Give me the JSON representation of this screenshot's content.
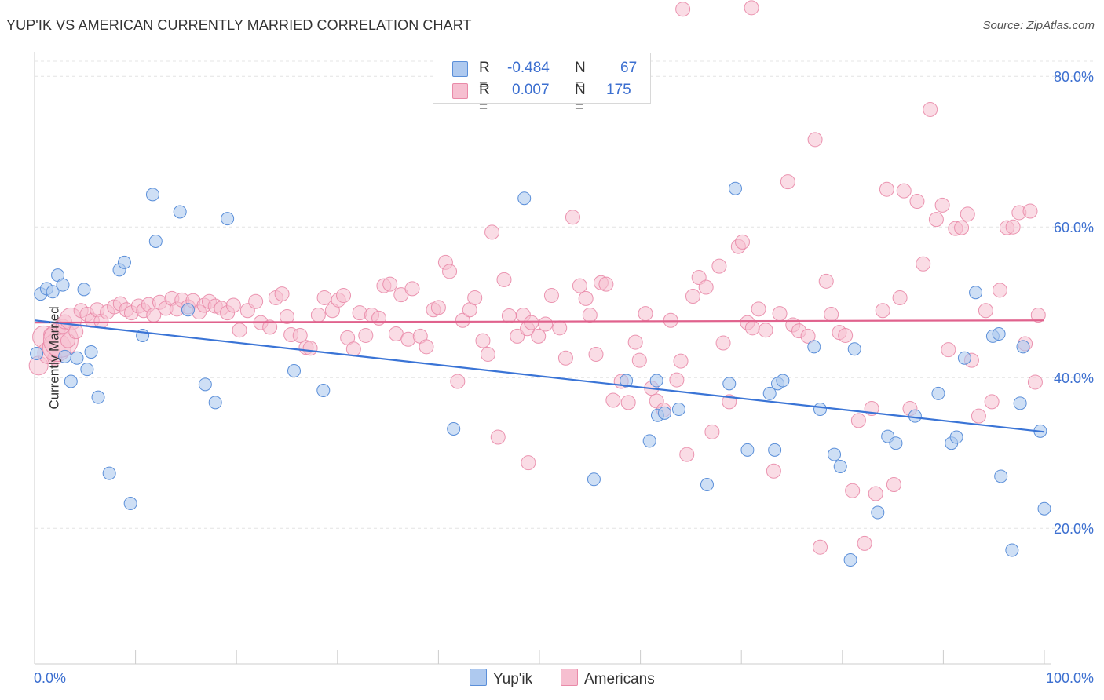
{
  "header": {
    "title": "YUP'IK VS AMERICAN CURRENTLY MARRIED CORRELATION CHART",
    "source": "Source: ZipAtlas.com"
  },
  "legend": {
    "r_label": "R =",
    "n_label": "N =",
    "rows": [
      {
        "r": "-0.484",
        "n": "67"
      },
      {
        "r": "0.007",
        "n": "175"
      }
    ]
  },
  "colors": {
    "blue_fill": "#aec9ef",
    "blue_stroke": "#5b8fd9",
    "blue_line": "#3a74d6",
    "pink_fill": "#f6bfd0",
    "pink_stroke": "#e98aa8",
    "pink_line": "#e0628d",
    "axis_text": "#3c6fd0"
  },
  "chart_data": {
    "type": "scatter",
    "title": "YUP'IK VS AMERICAN CURRENTLY MARRIED CORRELATION CHART",
    "xlabel": "",
    "ylabel": "Currently Married",
    "xlim": [
      0,
      100
    ],
    "ylim": [
      2,
      82
    ],
    "x_tick_labels": [
      "0.0%",
      "100.0%"
    ],
    "y_ticks": [
      20,
      40,
      60,
      80
    ],
    "y_tick_labels": [
      "20.0%",
      "40.0%",
      "60.0%",
      "80.0%"
    ],
    "grid": true,
    "legend_position": "top-center",
    "series": [
      {
        "name": "Yup'ik",
        "r": -0.484,
        "n": 67,
        "trend": {
          "x": [
            0,
            100
          ],
          "y": [
            47.6,
            32.8
          ]
        },
        "points": [
          [
            0.2,
            43.2
          ],
          [
            0.6,
            51.1
          ],
          [
            1.2,
            51.8
          ],
          [
            1.8,
            51.4
          ],
          [
            2.3,
            53.6
          ],
          [
            2.8,
            52.3
          ],
          [
            3.0,
            42.8
          ],
          [
            3.6,
            39.5
          ],
          [
            4.2,
            42.6
          ],
          [
            4.9,
            51.7
          ],
          [
            5.2,
            41.1
          ],
          [
            5.6,
            43.4
          ],
          [
            6.3,
            37.4
          ],
          [
            7.4,
            27.3
          ],
          [
            8.4,
            54.3
          ],
          [
            8.9,
            55.3
          ],
          [
            9.5,
            23.3
          ],
          [
            10.7,
            45.6
          ],
          [
            11.7,
            64.3
          ],
          [
            12.0,
            58.1
          ],
          [
            14.4,
            62.0
          ],
          [
            15.2,
            49.0
          ],
          [
            16.9,
            39.1
          ],
          [
            17.9,
            36.7
          ],
          [
            19.1,
            61.1
          ],
          [
            25.7,
            40.9
          ],
          [
            28.6,
            38.3
          ],
          [
            41.5,
            33.2
          ],
          [
            48.5,
            63.8
          ],
          [
            55.4,
            26.5
          ],
          [
            58.6,
            39.6
          ],
          [
            60.9,
            31.6
          ],
          [
            61.6,
            39.6
          ],
          [
            61.7,
            35.0
          ],
          [
            62.4,
            35.3
          ],
          [
            63.8,
            35.8
          ],
          [
            66.6,
            25.8
          ],
          [
            68.8,
            39.2
          ],
          [
            69.4,
            65.1
          ],
          [
            70.6,
            30.4
          ],
          [
            72.8,
            37.9
          ],
          [
            73.3,
            30.4
          ],
          [
            73.6,
            39.2
          ],
          [
            74.1,
            39.6
          ],
          [
            77.2,
            44.1
          ],
          [
            77.8,
            35.8
          ],
          [
            79.2,
            29.8
          ],
          [
            79.8,
            28.2
          ],
          [
            80.8,
            15.8
          ],
          [
            81.2,
            43.8
          ],
          [
            83.5,
            22.1
          ],
          [
            84.5,
            32.2
          ],
          [
            85.3,
            31.3
          ],
          [
            87.2,
            34.9
          ],
          [
            89.5,
            37.9
          ],
          [
            90.8,
            31.3
          ],
          [
            91.3,
            32.1
          ],
          [
            92.1,
            42.6
          ],
          [
            93.2,
            51.3
          ],
          [
            94.9,
            45.5
          ],
          [
            95.5,
            45.8
          ],
          [
            95.7,
            26.9
          ],
          [
            96.8,
            17.1
          ],
          [
            97.6,
            36.6
          ],
          [
            97.9,
            44.1
          ],
          [
            99.6,
            32.9
          ],
          [
            100.0,
            22.6
          ]
        ]
      },
      {
        "name": "Americans",
        "r": 0.007,
        "n": 175,
        "trend": {
          "x": [
            0,
            100
          ],
          "y": [
            47.3,
            47.6
          ]
        },
        "points": [
          [
            0.4,
            41.6
          ],
          [
            0.9,
            45.4
          ],
          [
            1.4,
            43.3
          ],
          [
            1.6,
            45.7
          ],
          [
            2.0,
            42.6
          ],
          [
            2.2,
            44.0
          ],
          [
            2.4,
            46.6
          ],
          [
            2.6,
            45.0
          ],
          [
            2.8,
            46.8
          ],
          [
            3.0,
            47.4
          ],
          [
            3.3,
            44.9
          ],
          [
            3.6,
            47.8
          ],
          [
            4.1,
            46.1
          ],
          [
            4.6,
            48.9
          ],
          [
            5.2,
            48.4
          ],
          [
            5.7,
            47.6
          ],
          [
            6.2,
            49.0
          ],
          [
            6.6,
            47.5
          ],
          [
            7.2,
            48.7
          ],
          [
            7.9,
            49.4
          ],
          [
            8.5,
            49.8
          ],
          [
            9.1,
            49.0
          ],
          [
            9.6,
            48.6
          ],
          [
            10.3,
            49.5
          ],
          [
            10.8,
            48.9
          ],
          [
            11.3,
            49.7
          ],
          [
            11.8,
            48.3
          ],
          [
            12.4,
            50.0
          ],
          [
            13.0,
            49.2
          ],
          [
            13.6,
            50.5
          ],
          [
            14.1,
            49.1
          ],
          [
            14.6,
            50.3
          ],
          [
            15.2,
            49.4
          ],
          [
            15.7,
            50.2
          ],
          [
            16.3,
            48.7
          ],
          [
            16.8,
            49.6
          ],
          [
            17.3,
            50.1
          ],
          [
            17.9,
            49.5
          ],
          [
            18.5,
            49.2
          ],
          [
            19.1,
            48.6
          ],
          [
            19.7,
            49.6
          ],
          [
            20.3,
            46.3
          ],
          [
            21.1,
            48.9
          ],
          [
            21.9,
            50.1
          ],
          [
            22.4,
            47.3
          ],
          [
            23.3,
            46.7
          ],
          [
            23.9,
            50.6
          ],
          [
            24.5,
            51.1
          ],
          [
            25.0,
            48.1
          ],
          [
            25.4,
            45.7
          ],
          [
            26.3,
            45.6
          ],
          [
            26.9,
            44.0
          ],
          [
            27.3,
            43.9
          ],
          [
            28.1,
            48.3
          ],
          [
            28.7,
            50.6
          ],
          [
            29.5,
            48.9
          ],
          [
            30.1,
            50.3
          ],
          [
            30.6,
            50.9
          ],
          [
            31.0,
            45.3
          ],
          [
            31.6,
            43.8
          ],
          [
            32.2,
            48.6
          ],
          [
            32.8,
            45.6
          ],
          [
            33.4,
            48.3
          ],
          [
            34.1,
            47.9
          ],
          [
            34.6,
            52.2
          ],
          [
            35.2,
            52.4
          ],
          [
            35.8,
            45.8
          ],
          [
            36.3,
            51.0
          ],
          [
            37.0,
            45.1
          ],
          [
            37.4,
            51.8
          ],
          [
            38.2,
            45.5
          ],
          [
            38.8,
            44.1
          ],
          [
            39.5,
            49.0
          ],
          [
            40.0,
            49.3
          ],
          [
            40.7,
            55.3
          ],
          [
            41.1,
            54.1
          ],
          [
            41.9,
            39.5
          ],
          [
            42.4,
            47.6
          ],
          [
            43.1,
            49.0
          ],
          [
            43.6,
            50.6
          ],
          [
            44.4,
            44.9
          ],
          [
            44.9,
            43.1
          ],
          [
            45.3,
            59.3
          ],
          [
            45.9,
            32.1
          ],
          [
            46.5,
            53.0
          ],
          [
            47.0,
            48.2
          ],
          [
            47.8,
            45.5
          ],
          [
            48.4,
            48.3
          ],
          [
            48.8,
            46.5
          ],
          [
            49.2,
            47.3
          ],
          [
            49.9,
            45.5
          ],
          [
            50.6,
            47.1
          ],
          [
            51.2,
            50.9
          ],
          [
            52.0,
            46.6
          ],
          [
            52.6,
            42.6
          ],
          [
            53.3,
            61.3
          ],
          [
            54.0,
            52.2
          ],
          [
            54.6,
            50.5
          ],
          [
            55.0,
            48.3
          ],
          [
            55.6,
            43.1
          ],
          [
            56.1,
            52.6
          ],
          [
            56.6,
            52.4
          ],
          [
            57.3,
            37.0
          ],
          [
            58.1,
            39.5
          ],
          [
            58.8,
            36.7
          ],
          [
            59.5,
            44.7
          ],
          [
            59.9,
            42.3
          ],
          [
            60.5,
            48.5
          ],
          [
            61.1,
            38.6
          ],
          [
            61.6,
            36.9
          ],
          [
            62.3,
            35.7
          ],
          [
            63.0,
            47.6
          ],
          [
            63.6,
            39.7
          ],
          [
            64.0,
            42.2
          ],
          [
            64.6,
            29.8
          ],
          [
            65.2,
            50.8
          ],
          [
            65.8,
            53.3
          ],
          [
            66.5,
            52.0
          ],
          [
            67.1,
            32.8
          ],
          [
            67.8,
            54.8
          ],
          [
            68.2,
            44.6
          ],
          [
            68.8,
            36.8
          ],
          [
            69.7,
            57.4
          ],
          [
            70.1,
            58.0
          ],
          [
            70.6,
            47.3
          ],
          [
            71.1,
            46.6
          ],
          [
            71.7,
            49.1
          ],
          [
            72.4,
            46.3
          ],
          [
            73.2,
            27.6
          ],
          [
            73.8,
            48.5
          ],
          [
            74.6,
            66.0
          ],
          [
            75.1,
            47.0
          ],
          [
            75.7,
            46.2
          ],
          [
            76.6,
            45.5
          ],
          [
            77.3,
            71.6
          ],
          [
            77.8,
            17.5
          ],
          [
            78.4,
            52.8
          ],
          [
            78.9,
            48.4
          ],
          [
            79.7,
            46.0
          ],
          [
            80.3,
            45.6
          ],
          [
            81.0,
            25.0
          ],
          [
            81.6,
            34.3
          ],
          [
            82.2,
            18.0
          ],
          [
            82.9,
            35.9
          ],
          [
            83.3,
            24.6
          ],
          [
            84.0,
            48.9
          ],
          [
            84.4,
            65.0
          ],
          [
            85.1,
            25.8
          ],
          [
            85.7,
            50.6
          ],
          [
            86.1,
            64.8
          ],
          [
            86.7,
            35.9
          ],
          [
            87.4,
            63.4
          ],
          [
            88.0,
            55.1
          ],
          [
            88.7,
            75.6
          ],
          [
            89.3,
            61.0
          ],
          [
            89.9,
            62.9
          ],
          [
            90.5,
            43.7
          ],
          [
            91.2,
            59.8
          ],
          [
            91.8,
            59.9
          ],
          [
            92.4,
            61.7
          ],
          [
            92.8,
            42.3
          ],
          [
            93.5,
            34.9
          ],
          [
            94.2,
            48.9
          ],
          [
            94.8,
            36.8
          ],
          [
            95.6,
            51.6
          ],
          [
            96.3,
            59.9
          ],
          [
            96.9,
            60.0
          ],
          [
            97.5,
            61.9
          ],
          [
            98.1,
            44.5
          ],
          [
            98.6,
            62.1
          ],
          [
            99.1,
            39.4
          ],
          [
            99.4,
            48.3
          ],
          [
            64.2,
            88.9
          ],
          [
            71.0,
            89.1
          ],
          [
            48.9,
            28.7
          ]
        ]
      }
    ]
  }
}
